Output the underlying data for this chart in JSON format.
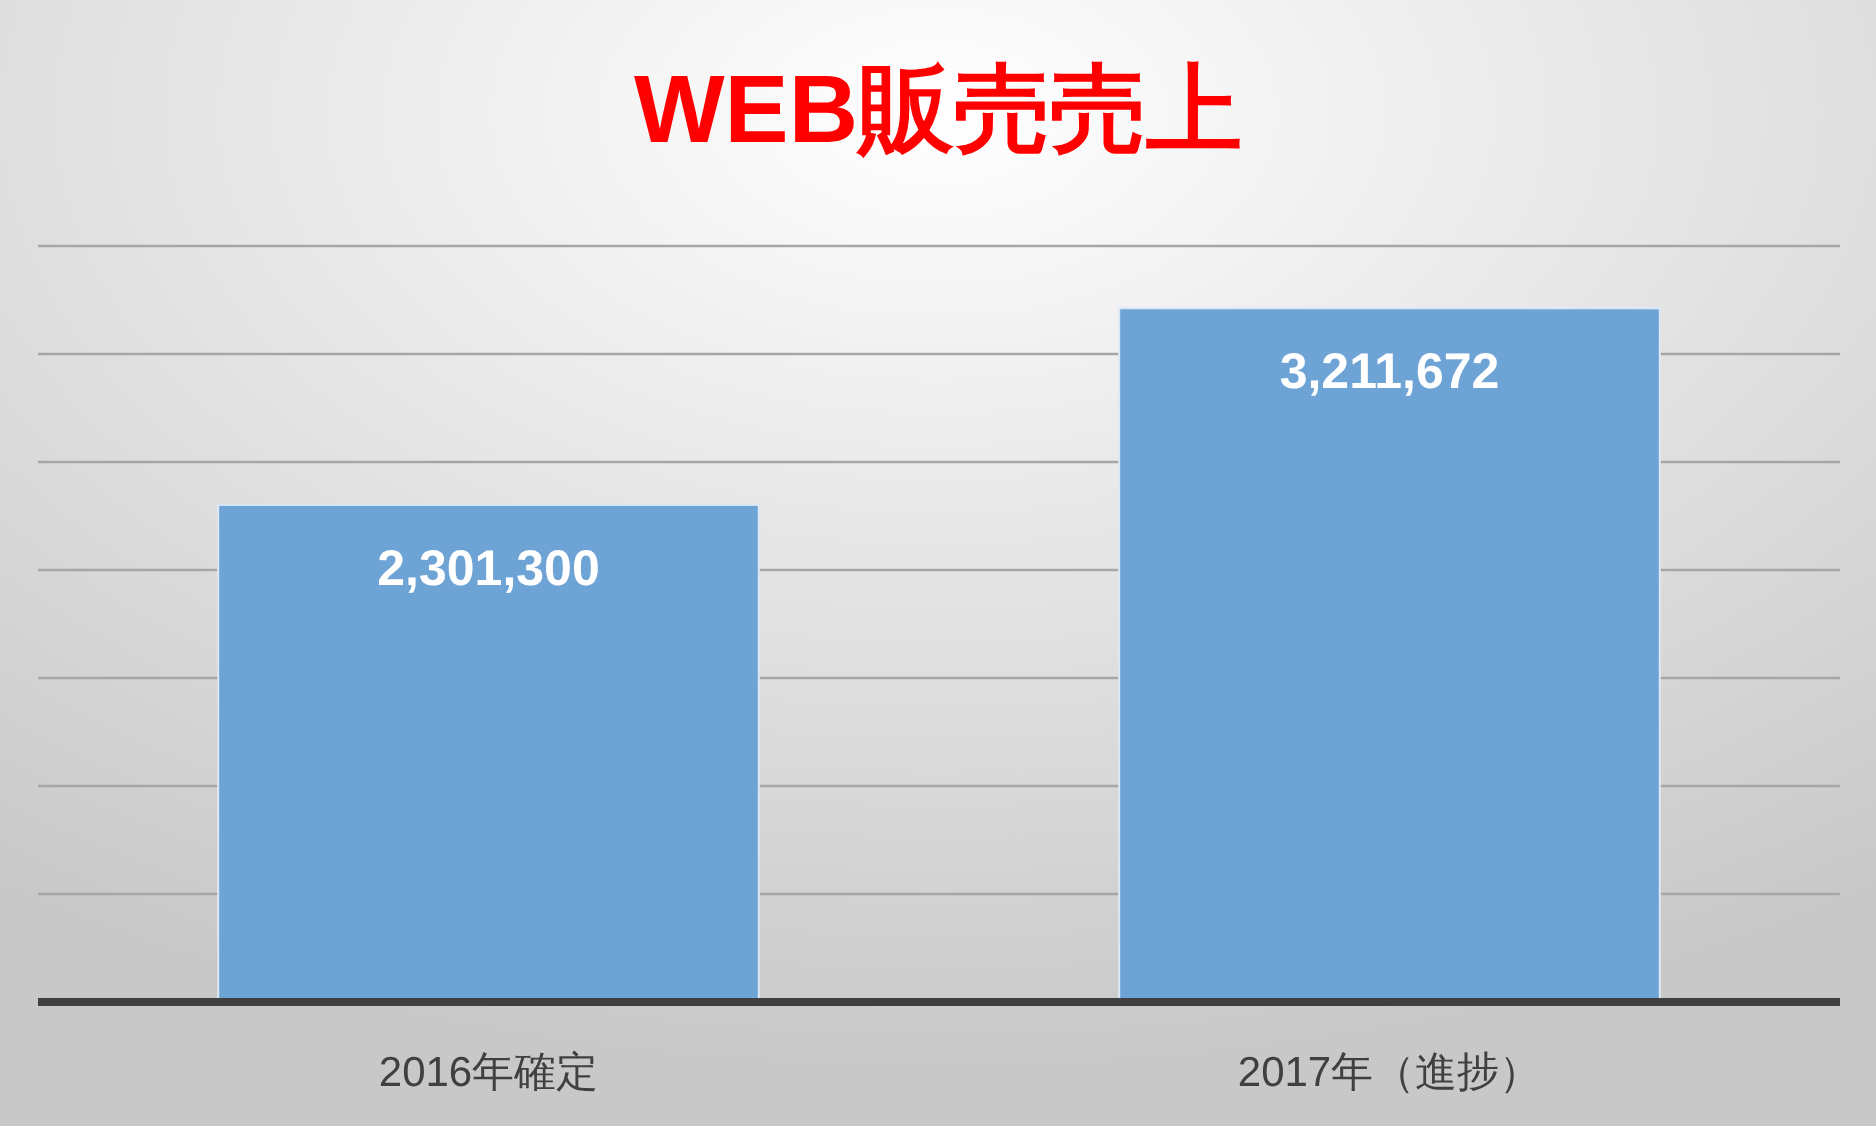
{
  "chart_data": {
    "type": "bar",
    "title": "WEB販売売上",
    "categories": [
      "2016年確定",
      "2017年（進捗）"
    ],
    "values": [
      2301300,
      3211672
    ],
    "color": "#6ea3d6",
    "value_labels": [
      "2,301,300",
      "3,211,672"
    ],
    "grid": "y",
    "tick_labels": "x"
  }
}
